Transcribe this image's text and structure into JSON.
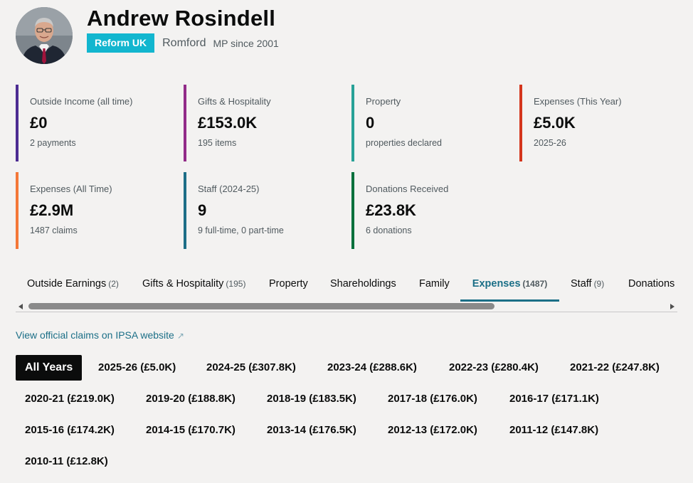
{
  "mp": {
    "name": "Andrew Rosindell",
    "party": "Reform UK",
    "party_color": "#12b6cf",
    "constituency": "Romford",
    "since": "MP since 2001"
  },
  "stats": [
    {
      "label": "Outside Income (all time)",
      "value": "£0",
      "sub": "2 payments",
      "color": "#4c2c92"
    },
    {
      "label": "Gifts & Hospitality",
      "value": "£153.0K",
      "sub": "195 items",
      "color": "#912b88"
    },
    {
      "label": "Property",
      "value": "0",
      "sub": "properties declared",
      "color": "#28a197"
    },
    {
      "label": "Expenses (This Year)",
      "value": "£5.0K",
      "sub": "2025-26",
      "color": "#d4351c"
    },
    {
      "label": "Expenses (All Time)",
      "value": "£2.9M",
      "sub": "1487 claims",
      "color": "#f47738"
    },
    {
      "label": "Staff (2024-25)",
      "value": "9",
      "sub": "9 full-time, 0 part-time",
      "color": "#1d6e87"
    },
    {
      "label": "Donations Received",
      "value": "£23.8K",
      "sub": "6 donations",
      "color": "#00703c"
    }
  ],
  "tabs": [
    {
      "label": "Outside Earnings",
      "count": "(2)"
    },
    {
      "label": "Gifts & Hospitality",
      "count": "(195)"
    },
    {
      "label": "Property",
      "count": ""
    },
    {
      "label": "Shareholdings",
      "count": ""
    },
    {
      "label": "Family",
      "count": ""
    },
    {
      "label": "Expenses",
      "count": "(1487)",
      "active": true
    },
    {
      "label": "Staff",
      "count": "(9)"
    },
    {
      "label": "Donations",
      "count": ""
    }
  ],
  "ipsa_link": {
    "label": "View official claims on IPSA website",
    "icon": "external-link-icon"
  },
  "years": [
    {
      "label": "All Years",
      "active": true
    },
    {
      "label": "2025-26 (£5.0K)"
    },
    {
      "label": "2024-25 (£307.8K)"
    },
    {
      "label": "2023-24 (£288.6K)"
    },
    {
      "label": "2022-23 (£280.4K)"
    },
    {
      "label": "2021-22 (£247.8K)"
    },
    {
      "label": "2020-21 (£219.0K)"
    },
    {
      "label": "2019-20 (£188.8K)"
    },
    {
      "label": "2018-19 (£183.5K)"
    },
    {
      "label": "2017-18 (£176.0K)"
    },
    {
      "label": "2016-17 (£171.1K)"
    },
    {
      "label": "2015-16 (£174.2K)"
    },
    {
      "label": "2014-15 (£170.7K)"
    },
    {
      "label": "2013-14 (£176.5K)"
    },
    {
      "label": "2012-13 (£172.0K)"
    },
    {
      "label": "2011-12 (£147.8K)"
    },
    {
      "label": "2010-11 (£12.8K)"
    }
  ]
}
